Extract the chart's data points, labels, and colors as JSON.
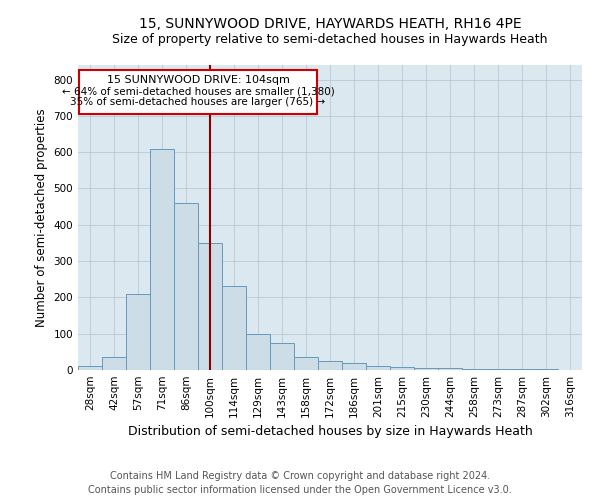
{
  "title": "15, SUNNYWOOD DRIVE, HAYWARDS HEATH, RH16 4PE",
  "subtitle": "Size of property relative to semi-detached houses in Haywards Heath",
  "xlabel": "Distribution of semi-detached houses by size in Haywards Heath",
  "ylabel": "Number of semi-detached properties",
  "categories": [
    "28sqm",
    "42sqm",
    "57sqm",
    "71sqm",
    "86sqm",
    "100sqm",
    "114sqm",
    "129sqm",
    "143sqm",
    "158sqm",
    "172sqm",
    "186sqm",
    "201sqm",
    "215sqm",
    "230sqm",
    "244sqm",
    "258sqm",
    "273sqm",
    "287sqm",
    "302sqm",
    "316sqm"
  ],
  "values": [
    12,
    35,
    210,
    610,
    460,
    350,
    230,
    100,
    75,
    35,
    25,
    20,
    12,
    8,
    6,
    5,
    4,
    3,
    2,
    2,
    1
  ],
  "bar_color": "#ccdde8",
  "bar_edge_color": "#6699bb",
  "highlight_index": 5,
  "highlight_line_color": "#880000",
  "ylim": [
    0,
    840
  ],
  "yticks": [
    0,
    100,
    200,
    300,
    400,
    500,
    600,
    700,
    800
  ],
  "annotation_text1": "15 SUNNYWOOD DRIVE: 104sqm",
  "annotation_text2": "← 64% of semi-detached houses are smaller (1,380)",
  "annotation_text3": "35% of semi-detached houses are larger (765) →",
  "annotation_box_color": "#ffffff",
  "annotation_box_edge": "#cc0000",
  "footer1": "Contains HM Land Registry data © Crown copyright and database right 2024.",
  "footer2": "Contains public sector information licensed under the Open Government Licence v3.0.",
  "title_fontsize": 10,
  "subtitle_fontsize": 9,
  "xlabel_fontsize": 9,
  "ylabel_fontsize": 8.5,
  "tick_fontsize": 7.5,
  "annot_fontsize1": 8,
  "annot_fontsize2": 7.5,
  "footer_fontsize": 7,
  "bg_axes": "#dce8f0",
  "grid_color": "#b8c8d8"
}
